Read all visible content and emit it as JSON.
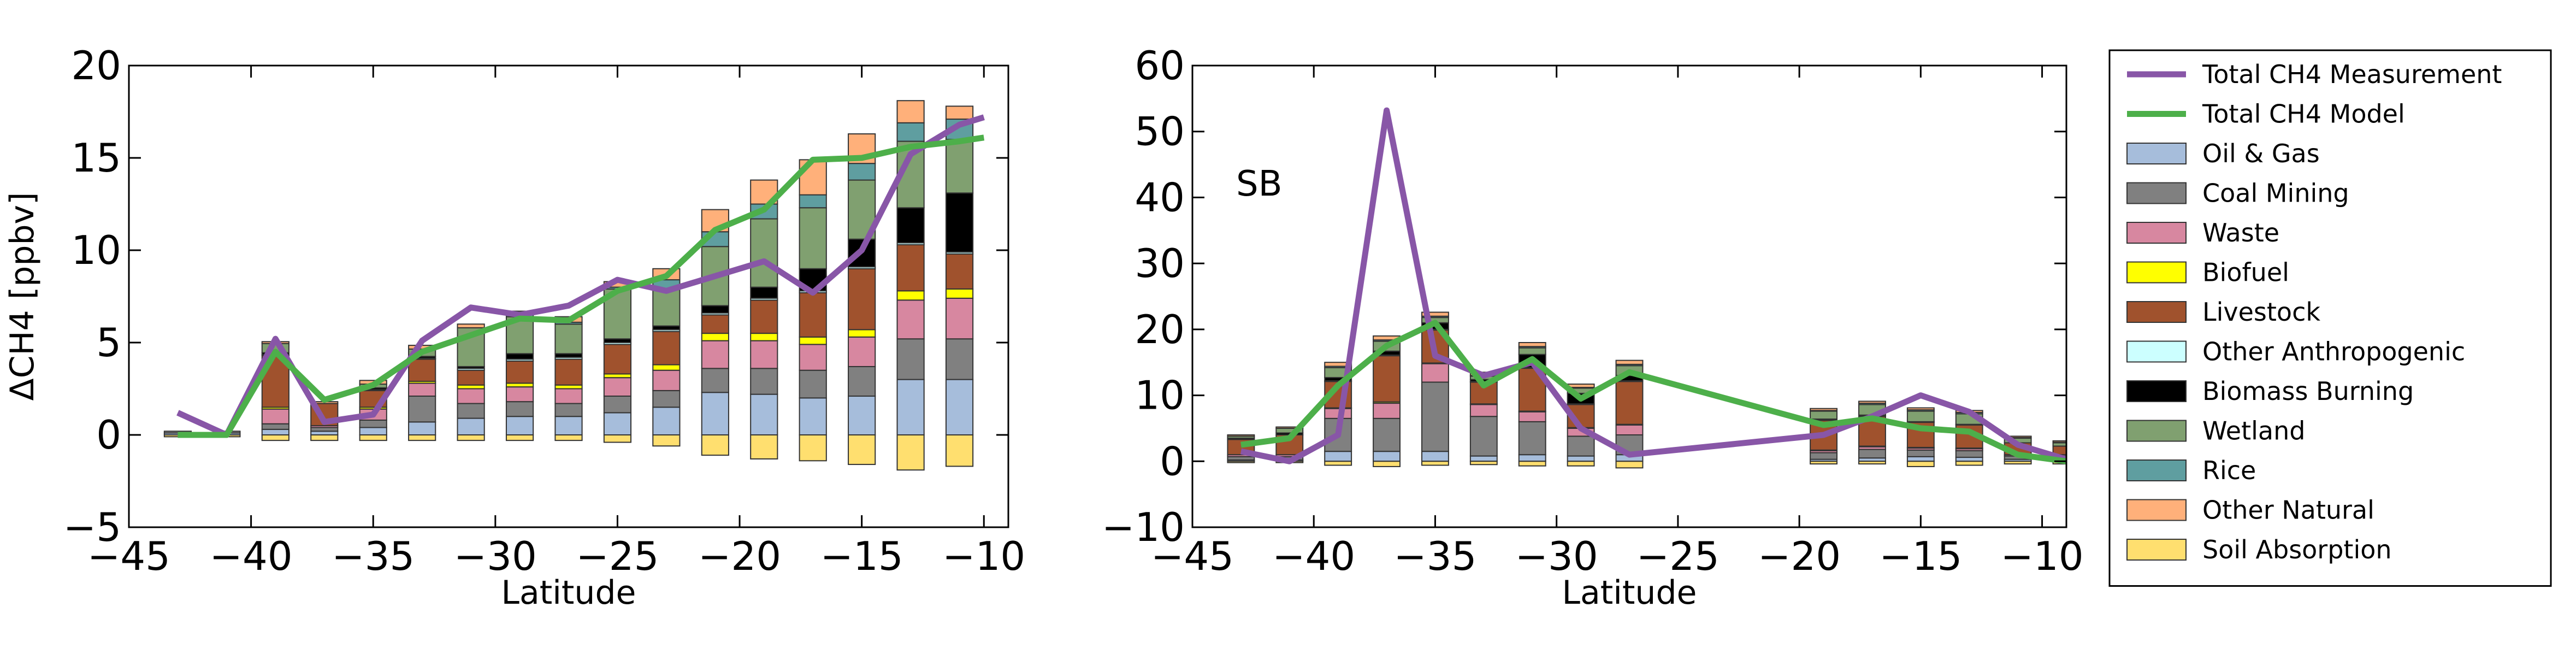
{
  "chart_data": [
    {
      "type": "bar",
      "stacked": true,
      "title": "",
      "xlabel": "Latitude",
      "ylabel": "ΔCH4 [ppbv]",
      "xlim": [
        -45,
        -9
      ],
      "ylim": [
        -5,
        20
      ],
      "xticks": [
        -45,
        -40,
        -35,
        -30,
        -25,
        -20,
        -15,
        -10
      ],
      "yticks": [
        -5,
        0,
        5,
        10,
        15,
        20
      ],
      "bar_width": 1.1,
      "x": [
        -43,
        -41,
        -39,
        -37,
        -35,
        -33,
        -31,
        -29,
        -27,
        -25,
        -23,
        -21,
        -19,
        -17,
        -15,
        -13,
        -11
      ],
      "negative_series": {
        "name": "Soil Absorption",
        "values": [
          -0.1,
          -0.1,
          -0.3,
          -0.3,
          -0.3,
          -0.3,
          -0.3,
          -0.3,
          -0.3,
          -0.4,
          -0.6,
          -1.1,
          -1.3,
          -1.4,
          -1.6,
          -1.9,
          -1.7
        ]
      },
      "series": [
        {
          "name": "Oil & Gas",
          "values": [
            0.1,
            0.1,
            0.3,
            0.2,
            0.4,
            0.7,
            0.9,
            1.0,
            1.0,
            1.2,
            1.5,
            2.3,
            2.2,
            2.0,
            2.1,
            3.0,
            3.0
          ]
        },
        {
          "name": "Coal Mining",
          "values": [
            0.1,
            0.1,
            0.3,
            0.2,
            0.4,
            1.4,
            0.8,
            0.8,
            0.7,
            0.9,
            0.9,
            1.3,
            1.4,
            1.5,
            1.6,
            2.2,
            2.2
          ]
        },
        {
          "name": "Waste",
          "values": [
            0.0,
            0.0,
            0.8,
            0.1,
            0.6,
            0.7,
            0.8,
            0.8,
            0.8,
            1.0,
            1.1,
            1.5,
            1.5,
            1.4,
            1.6,
            2.1,
            2.2
          ]
        },
        {
          "name": "Biofuel",
          "values": [
            0.0,
            0.0,
            0.1,
            0.0,
            0.1,
            0.1,
            0.2,
            0.2,
            0.2,
            0.2,
            0.3,
            0.4,
            0.4,
            0.4,
            0.4,
            0.5,
            0.5
          ]
        },
        {
          "name": "Livestock",
          "values": [
            0.0,
            0.0,
            2.8,
            1.2,
            0.9,
            1.2,
            0.8,
            1.2,
            1.4,
            1.6,
            1.8,
            1.0,
            1.8,
            2.4,
            3.3,
            2.5,
            1.9
          ]
        },
        {
          "name": "Other Anthropogenic",
          "values": [
            0.0,
            0.0,
            0.05,
            0.0,
            0.05,
            0.05,
            0.1,
            0.1,
            0.1,
            0.1,
            0.1,
            0.1,
            0.1,
            0.1,
            0.1,
            0.1,
            0.1
          ]
        },
        {
          "name": "Biomass Burning",
          "values": [
            0.0,
            0.0,
            0.1,
            0.0,
            0.1,
            0.1,
            0.1,
            0.3,
            0.2,
            0.2,
            0.2,
            0.4,
            0.6,
            1.2,
            1.5,
            1.9,
            3.2
          ]
        },
        {
          "name": "Wetland",
          "values": [
            0.0,
            0.0,
            0.5,
            0.0,
            0.2,
            0.4,
            2.1,
            2.0,
            1.6,
            2.7,
            2.0,
            3.2,
            3.7,
            3.3,
            3.2,
            3.6,
            2.9
          ]
        },
        {
          "name": "Rice",
          "values": [
            0.0,
            0.0,
            0.0,
            0.0,
            0.0,
            0.0,
            0.0,
            0.1,
            0.1,
            0.1,
            0.5,
            0.8,
            0.8,
            0.7,
            0.9,
            1.0,
            1.1
          ]
        },
        {
          "name": "Other Natural",
          "values": [
            0.0,
            0.0,
            0.1,
            0.1,
            0.2,
            0.2,
            0.2,
            0.2,
            0.3,
            0.3,
            0.6,
            1.2,
            1.3,
            1.9,
            1.6,
            1.2,
            0.7
          ]
        }
      ],
      "lines": [
        {
          "name": "Total CH4 Measurement",
          "x": [
            -43,
            -41,
            -39,
            -37,
            -35,
            -33,
            -31,
            -29,
            -27,
            -25,
            -23,
            -21,
            -19,
            -17,
            -15,
            -13,
            -11,
            -10
          ],
          "values": [
            1.2,
            0.0,
            5.2,
            0.7,
            1.1,
            5.1,
            6.9,
            6.5,
            7.0,
            8.4,
            7.8,
            8.6,
            9.4,
            7.7,
            10.0,
            15.2,
            16.8,
            17.2
          ]
        },
        {
          "name": "Total CH4 Model",
          "x": [
            -43,
            -41,
            -39,
            -37,
            -35,
            -33,
            -31,
            -29,
            -27,
            -25,
            -23,
            -21,
            -19,
            -17,
            -15,
            -13,
            -11,
            -10
          ],
          "values": [
            0.0,
            0.0,
            4.5,
            1.9,
            2.7,
            4.5,
            5.4,
            6.3,
            6.2,
            7.8,
            8.6,
            11.1,
            12.2,
            14.9,
            15.0,
            15.6,
            15.9,
            16.1
          ]
        }
      ]
    },
    {
      "type": "bar",
      "stacked": true,
      "title": "",
      "annotation": "SB",
      "xlabel": "Latitude",
      "ylabel": "",
      "xlim": [
        -45,
        -9
      ],
      "ylim": [
        -10,
        60
      ],
      "xticks": [
        -45,
        -40,
        -35,
        -30,
        -25,
        -20,
        -15,
        -10
      ],
      "yticks": [
        -10,
        0,
        10,
        20,
        30,
        40,
        50,
        60
      ],
      "bar_width": 1.1,
      "x": [
        -43,
        -41,
        -39,
        -37,
        -35,
        -33,
        -31,
        -29,
        -27,
        -19,
        -17,
        -15,
        -13,
        -11,
        -9
      ],
      "negative_series": {
        "name": "Soil Absorption",
        "values": [
          -0.2,
          -0.2,
          -0.6,
          -0.8,
          -0.6,
          -0.5,
          -0.7,
          -0.7,
          -1.0,
          -0.4,
          -0.4,
          -0.8,
          -0.6,
          -0.4,
          -0.4
        ]
      },
      "series": [
        {
          "name": "Oil & Gas",
          "values": [
            0.2,
            0.2,
            1.5,
            1.5,
            1.5,
            0.8,
            1.0,
            0.8,
            1.0,
            0.3,
            0.5,
            0.7,
            0.6,
            0.3,
            0.3
          ]
        },
        {
          "name": "Coal Mining",
          "values": [
            0.5,
            0.5,
            5.0,
            5.0,
            10.5,
            6.0,
            5.0,
            3.0,
            3.0,
            1.0,
            1.3,
            1.0,
            1.0,
            0.5,
            0.5
          ]
        },
        {
          "name": "Waste",
          "values": [
            0.3,
            0.3,
            1.5,
            2.3,
            2.8,
            1.8,
            1.5,
            1.2,
            1.5,
            0.3,
            0.4,
            0.3,
            0.3,
            0.2,
            0.2
          ]
        },
        {
          "name": "Biofuel",
          "values": [
            0.0,
            0.0,
            0.1,
            0.2,
            0.1,
            0.1,
            0.1,
            0.1,
            0.1,
            0.1,
            0.1,
            0.1,
            0.1,
            0.0,
            0.0
          ]
        },
        {
          "name": "Livestock",
          "values": [
            2.3,
            3.0,
            4.0,
            7.0,
            5.0,
            3.3,
            6.5,
            3.5,
            6.5,
            4.5,
            4.5,
            3.8,
            3.5,
            1.8,
            1.3
          ]
        },
        {
          "name": "Other Anthropogenic",
          "values": [
            0.0,
            0.0,
            0.1,
            0.1,
            0.1,
            0.1,
            0.1,
            0.1,
            0.1,
            0.1,
            0.1,
            0.1,
            0.1,
            0.0,
            0.0
          ]
        },
        {
          "name": "Biomass Burning",
          "values": [
            0.2,
            0.3,
            0.5,
            0.6,
            1.0,
            0.3,
            2.0,
            1.6,
            0.8,
            0.1,
            0.1,
            0.0,
            0.0,
            0.0,
            0.0
          ]
        },
        {
          "name": "Wetland",
          "values": [
            0.3,
            0.7,
            1.5,
            1.5,
            0.8,
            0.5,
            1.0,
            0.8,
            1.5,
            1.2,
            1.6,
            1.6,
            1.6,
            0.7,
            0.5
          ]
        },
        {
          "name": "Rice",
          "values": [
            0.0,
            0.0,
            0.2,
            0.2,
            0.2,
            0.1,
            0.2,
            0.1,
            0.2,
            0.1,
            0.2,
            0.2,
            0.2,
            0.1,
            0.1
          ]
        },
        {
          "name": "Other Natural",
          "values": [
            0.2,
            0.2,
            0.6,
            0.6,
            0.6,
            0.5,
            0.6,
            0.5,
            0.6,
            0.3,
            0.3,
            0.3,
            0.3,
            0.2,
            0.2
          ]
        }
      ],
      "lines": [
        {
          "name": "Total CH4 Measurement",
          "x": [
            -43,
            -41,
            -39,
            -37,
            -35,
            -33,
            -31,
            -29,
            -27,
            -19,
            -17,
            -15,
            -13,
            -11,
            -9
          ],
          "values": [
            1.5,
            0.0,
            4.0,
            53.2,
            16.0,
            13.0,
            15.0,
            5.0,
            1.0,
            4.0,
            6.8,
            10.0,
            7.5,
            2.5,
            0.3
          ]
        },
        {
          "name": "Total CH4 Model",
          "x": [
            -43,
            -41,
            -39,
            -37,
            -35,
            -33,
            -31,
            -29,
            -27,
            -19,
            -17,
            -15,
            -13,
            -11,
            -9
          ],
          "values": [
            2.5,
            3.5,
            11.5,
            17.5,
            21.0,
            11.5,
            15.5,
            9.5,
            13.5,
            5.5,
            6.5,
            5.0,
            4.5,
            1.0,
            0.0
          ]
        }
      ]
    }
  ],
  "colors": {
    "Total CH4 Measurement": "#8856a7",
    "Total CH4 Model": "#4daf4a",
    "Oil & Gas": "#a6bddb",
    "Coal Mining": "#808080",
    "Waste": "#d787a0",
    "Biofuel": "#ffff00",
    "Livestock": "#a0522d",
    "Other Anthropogenic": "#ccffff",
    "Biomass Burning": "#000000",
    "Wetland": "#80a070",
    "Rice": "#5f9ea0",
    "Other Natural": "#ffb07a",
    "Soil Absorption": "#ffdf6f"
  },
  "legend": {
    "placement": "right",
    "entries": [
      {
        "label": "Total CH4 Measurement",
        "kind": "line"
      },
      {
        "label": "Total CH4 Model",
        "kind": "line"
      },
      {
        "label": "Oil & Gas",
        "kind": "patch"
      },
      {
        "label": "Coal Mining",
        "kind": "patch"
      },
      {
        "label": "Waste",
        "kind": "patch"
      },
      {
        "label": "Biofuel",
        "kind": "patch"
      },
      {
        "label": "Livestock",
        "kind": "patch"
      },
      {
        "label": "Other Anthropogenic",
        "kind": "patch"
      },
      {
        "label": "Biomass Burning",
        "kind": "patch"
      },
      {
        "label": "Wetland",
        "kind": "patch"
      },
      {
        "label": "Rice",
        "kind": "patch"
      },
      {
        "label": "Other Natural",
        "kind": "patch"
      },
      {
        "label": "Soil Absorption",
        "kind": "patch"
      }
    ]
  }
}
